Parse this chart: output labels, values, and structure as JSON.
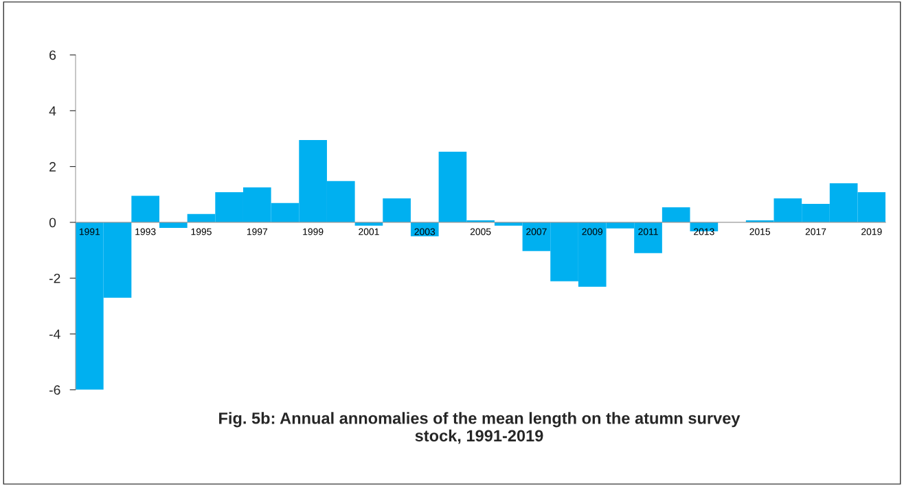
{
  "chart_data": {
    "type": "bar",
    "title": "Fig. 5b: Annual annomalies of the mean length on the atumn survey\nstock, 1991-2019",
    "categories": [
      "1991",
      null,
      "1993",
      null,
      "1995",
      null,
      "1997",
      null,
      "1999",
      null,
      "2001",
      null,
      "2003",
      null,
      "2005",
      null,
      "2007",
      null,
      "2009",
      null,
      "2011",
      null,
      "2013",
      null,
      "2015",
      null,
      "2017",
      null,
      "2019"
    ],
    "values": [
      -6.0,
      -2.7,
      0.95,
      -0.2,
      0.3,
      1.08,
      1.25,
      0.69,
      2.95,
      1.48,
      -0.12,
      0.86,
      -0.5,
      2.53,
      0.07,
      -0.12,
      -1.03,
      -2.11,
      -2.31,
      -0.22,
      -1.1,
      0.54,
      -0.32,
      0.0,
      0.07,
      0.86,
      0.66,
      1.4,
      1.08
    ],
    "color": "#00b0f0",
    "ylim": [
      -6,
      6
    ],
    "yticks": [
      -6,
      -4,
      -2,
      0,
      2,
      4,
      6
    ],
    "grid": false,
    "legend": false
  }
}
